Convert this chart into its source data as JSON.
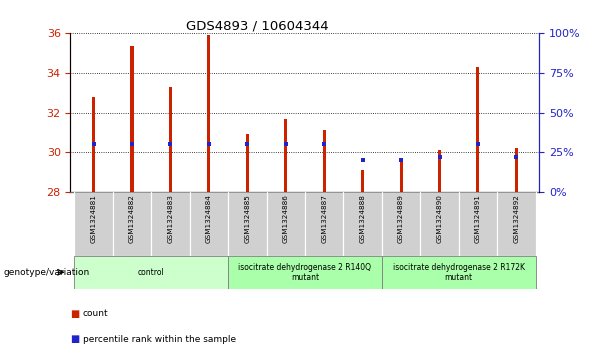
{
  "title": "GDS4893 / 10604344",
  "samples": [
    "GSM1324881",
    "GSM1324882",
    "GSM1324883",
    "GSM1324884",
    "GSM1324885",
    "GSM1324886",
    "GSM1324887",
    "GSM1324888",
    "GSM1324889",
    "GSM1324890",
    "GSM1324891",
    "GSM1324892"
  ],
  "counts": [
    32.8,
    35.35,
    33.3,
    35.9,
    30.9,
    31.7,
    31.1,
    29.1,
    29.7,
    30.1,
    34.3,
    30.2
  ],
  "percentile_ranks": [
    30,
    30,
    30,
    30,
    30,
    30,
    30,
    20,
    20,
    22,
    30,
    22
  ],
  "ylim_left": [
    28,
    36
  ],
  "ylim_right": [
    0,
    100
  ],
  "yticks_left": [
    28,
    30,
    32,
    34,
    36
  ],
  "yticks_right": [
    0,
    25,
    50,
    75,
    100
  ],
  "bar_color": "#cc2200",
  "dot_color": "#2222cc",
  "groups": [
    {
      "label": "control",
      "start": 0,
      "end": 3,
      "color": "#ccffcc"
    },
    {
      "label": "isocitrate dehydrogenase 2 R140Q\nmutant",
      "start": 4,
      "end": 7,
      "color": "#aaffaa"
    },
    {
      "label": "isocitrate dehydrogenase 2 R172K\nmutant",
      "start": 8,
      "end": 11,
      "color": "#aaffaa"
    }
  ],
  "bg_color": "#ffffff",
  "tick_color_left": "#cc2200",
  "tick_color_right": "#2222cc",
  "genotype_label": "genotype/variation",
  "bar_bottom": 28,
  "sample_bg": "#d0d0d0",
  "bar_width": 0.08
}
